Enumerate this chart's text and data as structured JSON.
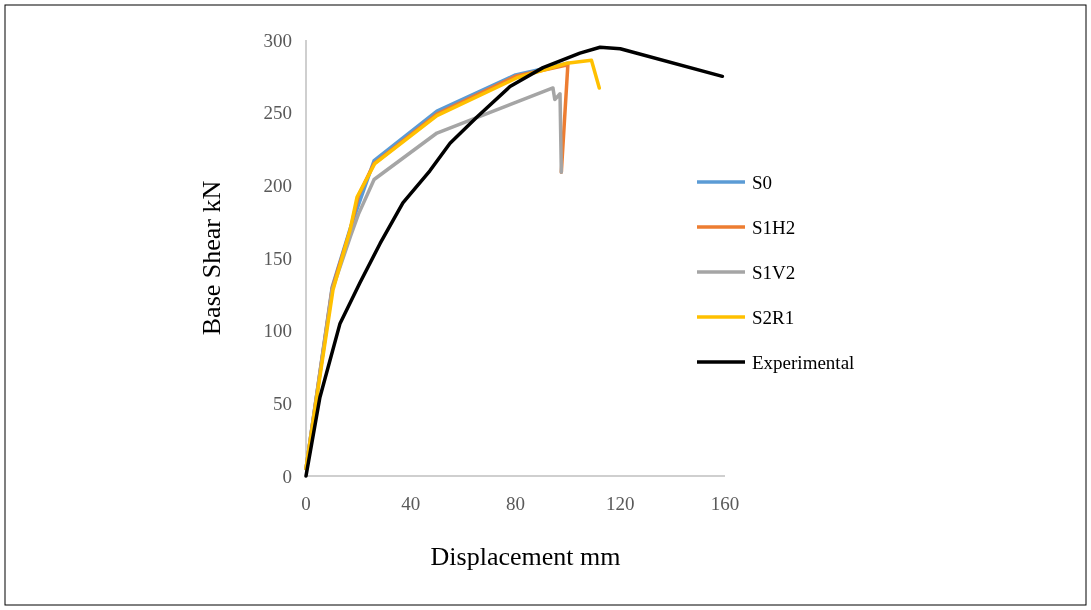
{
  "chart_data": {
    "type": "line",
    "xlabel": "Displacement mm",
    "ylabel": "Base Shear kN",
    "xlim": [
      0,
      160
    ],
    "ylim": [
      0,
      300
    ],
    "xticks": [
      0,
      40,
      80,
      120,
      160
    ],
    "yticks": [
      0,
      50,
      100,
      150,
      200,
      250,
      300
    ],
    "grid": false,
    "legend": "right",
    "marker": "none",
    "line_style": "solid",
    "series": [
      {
        "name": "S0",
        "color": "#5b9bd5",
        "x": [
          0,
          10,
          17,
          26,
          50,
          80,
          100
        ],
        "values": [
          5,
          130,
          171,
          217,
          251,
          276,
          284
        ]
      },
      {
        "name": "S1H2",
        "color": "#ed7d31",
        "x": [
          0,
          10,
          17,
          20,
          26,
          50,
          80,
          100,
          97.5
        ],
        "values": [
          5,
          129,
          170,
          193,
          215,
          249,
          275,
          283,
          209
        ]
      },
      {
        "name": "S1V2",
        "color": "#a5a5a5",
        "x": [
          0,
          10,
          17,
          20,
          26,
          50,
          94.3,
          95,
          97,
          97.5
        ],
        "values": [
          5,
          128,
          165,
          180,
          204,
          236,
          267,
          259,
          263,
          209
        ]
      },
      {
        "name": "S2R1",
        "color": "#ffc000",
        "x": [
          0,
          10.3,
          16.8,
          19.5,
          26.3,
          50,
          80.6,
          99.6,
          109,
          112
        ],
        "values": [
          5,
          128,
          169,
          192,
          215,
          248,
          274,
          284,
          286,
          267
        ]
      },
      {
        "name": "Experimental",
        "color": "#000000",
        "x": [
          0,
          5.3,
          13,
          20.6,
          28.3,
          37,
          47.3,
          55,
          65.3,
          77.9,
          90.5,
          104.6,
          112.3,
          120,
          159
        ],
        "values": [
          0,
          54,
          105,
          133,
          160,
          188,
          210,
          229,
          247,
          268,
          281,
          291,
          295,
          294,
          275
        ]
      }
    ]
  }
}
